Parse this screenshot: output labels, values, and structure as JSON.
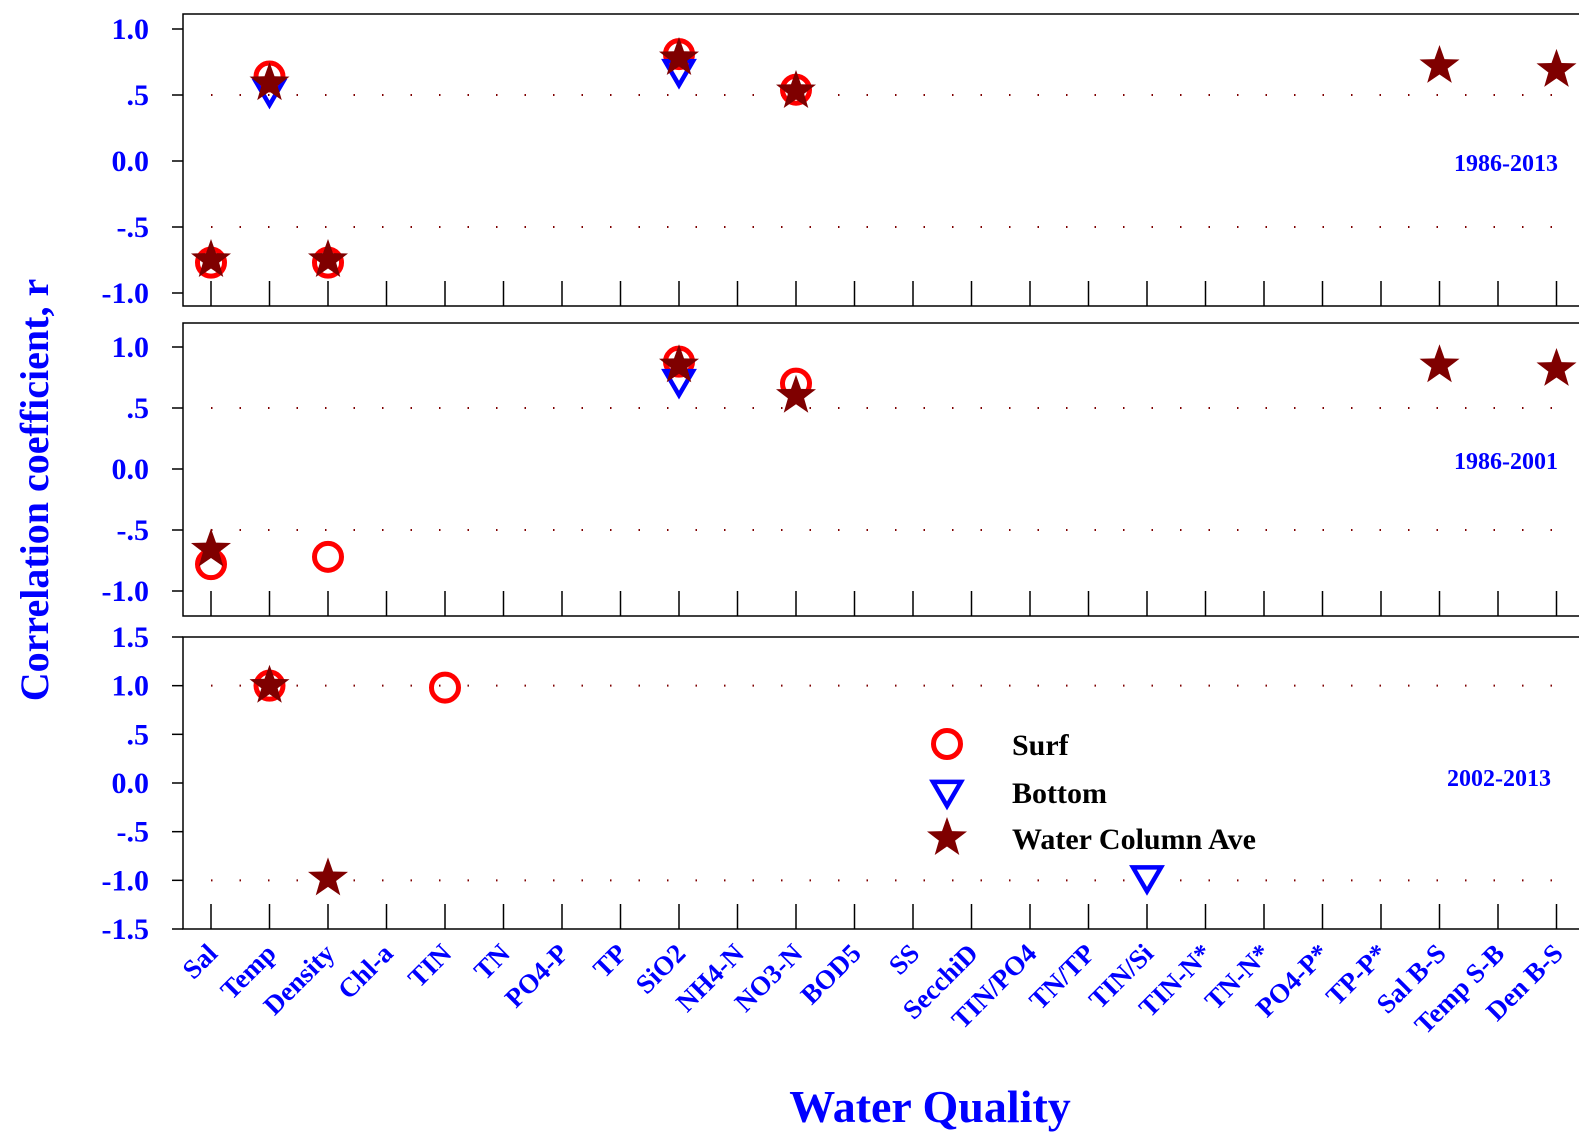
{
  "chart_data": {
    "type": "scatter",
    "xlabel": "Water Quality",
    "ylabel": "Correlation coefficient, r",
    "categories": [
      "Sal",
      "Temp",
      "Density",
      "Chl-a",
      "TIN",
      "TN",
      "PO4-P",
      "TP",
      "SiO2",
      "NH4-N",
      "NO3-N",
      "BOD5",
      "SS",
      "SecchiD",
      "TIN/PO4",
      "TN/TP",
      "TIN/Si",
      "TIN-N*",
      "TN-N*",
      "PO4-P*",
      "TP-P*",
      "Sal B-S",
      "Temp S-B",
      "Den B-S"
    ],
    "legend": [
      {
        "name": "Surf",
        "marker": "circle",
        "color": "#ff0000"
      },
      {
        "name": "Bottom",
        "marker": "triangle-down",
        "color": "#0000ff"
      },
      {
        "name": "Water Column Ave",
        "marker": "star",
        "color": "#7f0000"
      }
    ],
    "legend_position": "center-right of bottom panel",
    "reference_lines_color": "#7f0000",
    "panels": [
      {
        "period": "1986-2013",
        "ylim": [
          -1.1,
          1.1
        ],
        "yticks": [
          1.0,
          0.5,
          0.0,
          -0.5,
          -1.0
        ],
        "ytick_labels": [
          "1.0",
          ".5",
          "0.0",
          "-.5",
          "-1.0"
        ],
        "reference_lines": [
          0.5,
          -0.5
        ],
        "series": [
          {
            "name": "Surf",
            "points": [
              [
                "Sal",
                -0.77
              ],
              [
                "Temp",
                0.64
              ],
              [
                "Density",
                -0.77
              ],
              [
                "SiO2",
                0.81
              ],
              [
                "NO3-N",
                0.54
              ]
            ]
          },
          {
            "name": "Bottom",
            "points": [
              [
                "Temp",
                0.53
              ],
              [
                "SiO2",
                0.68
              ]
            ]
          },
          {
            "name": "Water Column Ave",
            "points": [
              [
                "Sal",
                -0.75
              ],
              [
                "Temp",
                0.59
              ],
              [
                "Density",
                -0.75
              ],
              [
                "SiO2",
                0.78
              ],
              [
                "NO3-N",
                0.53
              ],
              [
                "Sal B-S",
                0.72
              ],
              [
                "Den B-S",
                0.69
              ]
            ]
          }
        ]
      },
      {
        "period": "1986-2001",
        "ylim": [
          -1.1,
          1.1
        ],
        "yticks": [
          1.0,
          0.5,
          0.0,
          -0.5,
          -1.0
        ],
        "ytick_labels": [
          "1.0",
          ".5",
          "0.0",
          "-.5",
          "-1.0"
        ],
        "reference_lines": [
          0.5,
          -0.5
        ],
        "series": [
          {
            "name": "Surf",
            "points": [
              [
                "Sal",
                -0.78
              ],
              [
                "Density",
                -0.72
              ],
              [
                "SiO2",
                0.88
              ],
              [
                "NO3-N",
                0.7
              ]
            ]
          },
          {
            "name": "Bottom",
            "points": [
              [
                "SiO2",
                0.72
              ]
            ]
          },
          {
            "name": "Water Column Ave",
            "points": [
              [
                "Sal",
                -0.66
              ],
              [
                "SiO2",
                0.85
              ],
              [
                "NO3-N",
                0.6
              ],
              [
                "Sal B-S",
                0.85
              ],
              [
                "Den B-S",
                0.82
              ]
            ]
          }
        ]
      },
      {
        "period": "2002-2013",
        "ylim": [
          -1.5,
          1.5
        ],
        "yticks": [
          1.5,
          1.0,
          0.5,
          0.0,
          -0.5,
          -1.0,
          -1.5
        ],
        "ytick_labels": [
          "1.5",
          "1.0",
          ".5",
          "0.0",
          "-.5",
          "-1.0",
          "-1.5"
        ],
        "reference_lines": [
          1.0,
          -1.0
        ],
        "series": [
          {
            "name": "Surf",
            "points": [
              [
                "Temp",
                1.0
              ],
              [
                "TIN",
                0.98
              ]
            ]
          },
          {
            "name": "Bottom",
            "points": [
              [
                "TIN/Si",
                -0.97
              ]
            ]
          },
          {
            "name": "Water Column Ave",
            "points": [
              [
                "Temp",
                1.0
              ],
              [
                "Density",
                -0.98
              ]
            ]
          }
        ]
      }
    ]
  }
}
